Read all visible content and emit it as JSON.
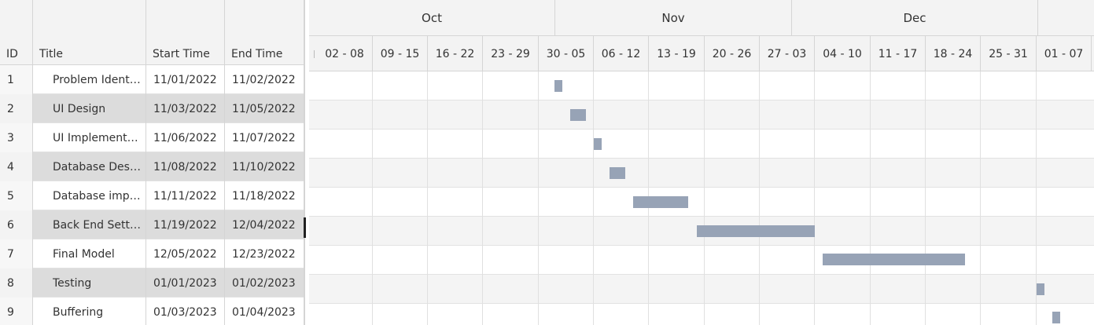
{
  "grid": {
    "columns": {
      "id": "ID",
      "title": "Title",
      "start": "Start Time",
      "end": "End Time"
    },
    "rows": [
      {
        "id": "1",
        "title": "Problem Identifi...",
        "start": "11/01/2022",
        "end": "11/02/2022"
      },
      {
        "id": "2",
        "title": "UI Design",
        "start": "11/03/2022",
        "end": "11/05/2022"
      },
      {
        "id": "3",
        "title": "UI Implementati...",
        "start": "11/06/2022",
        "end": "11/07/2022"
      },
      {
        "id": "4",
        "title": "Database Design",
        "start": "11/08/2022",
        "end": "11/10/2022"
      },
      {
        "id": "5",
        "title": "Database imple...",
        "start": "11/11/2022",
        "end": "11/18/2022"
      },
      {
        "id": "6",
        "title": "Back End Setting",
        "start": "11/19/2022",
        "end": "12/04/2022"
      },
      {
        "id": "7",
        "title": "Final Model",
        "start": "12/05/2022",
        "end": "12/23/2022"
      },
      {
        "id": "8",
        "title": "Testing",
        "start": "01/01/2023",
        "end": "01/02/2023"
      },
      {
        "id": "9",
        "title": "Buffering",
        "start": "01/03/2023",
        "end": "01/04/2023"
      }
    ]
  },
  "timeline": {
    "months": [
      "Oct",
      "Nov",
      "Dec"
    ],
    "weeks": [
      "02 - 08",
      "09 - 15",
      "16 - 22",
      "23 - 29",
      "30 - 05",
      "06 - 12",
      "13 - 19",
      "20 - 26",
      "27 - 03",
      "04 - 10",
      "11 - 17",
      "18 - 24",
      "25 - 31",
      "01 - 07"
    ]
  },
  "colors": {
    "bar": "#97a3b6",
    "header_bg": "#f3f3f3",
    "alt_row_bg": "#dcdcdc"
  }
}
